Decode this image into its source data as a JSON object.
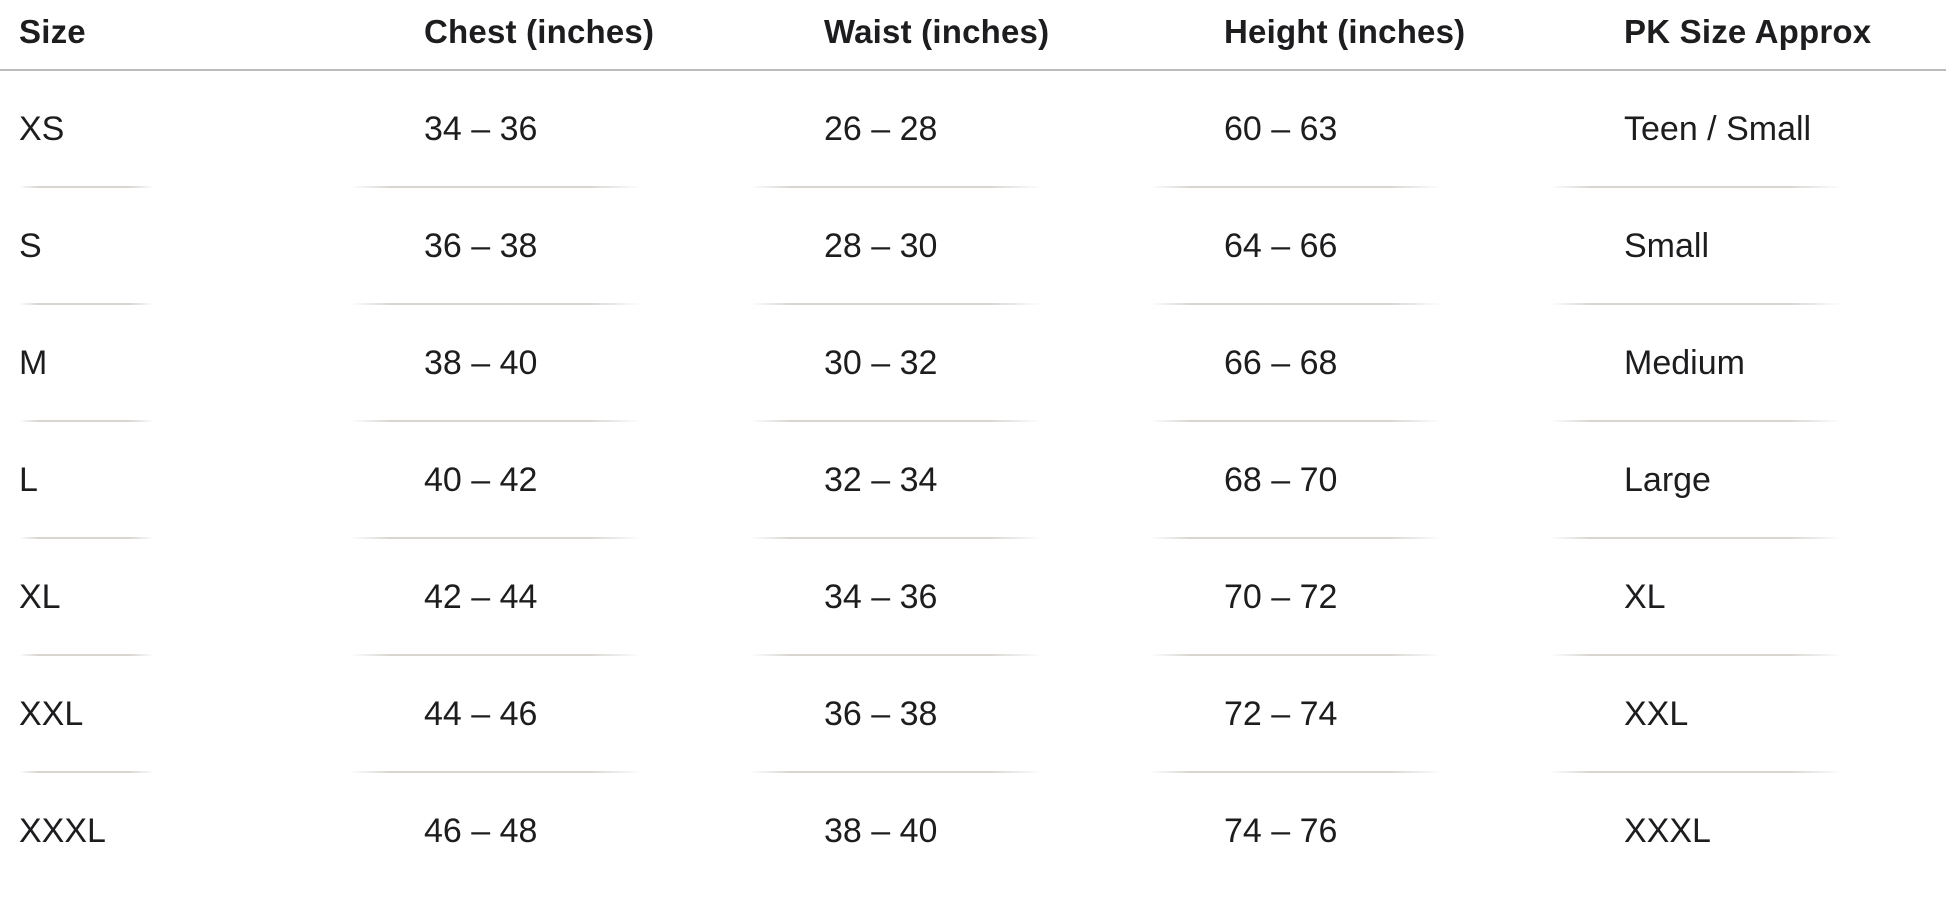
{
  "chart_data": {
    "type": "table",
    "columns": [
      {
        "id": "size",
        "label": "Size"
      },
      {
        "id": "chest",
        "label": "Chest (inches)"
      },
      {
        "id": "waist",
        "label": "Waist (inches)"
      },
      {
        "id": "height",
        "label": "Height (inches)"
      },
      {
        "id": "pk",
        "label": "PK Size Approx"
      }
    ],
    "rows": [
      {
        "size": "XS",
        "chest": "34 – 36",
        "waist": "26 – 28",
        "height": "60 – 63",
        "pk": "Teen / Small"
      },
      {
        "size": "S",
        "chest": "36 – 38",
        "waist": "28 – 30",
        "height": "64 – 66",
        "pk": "Small"
      },
      {
        "size": "M",
        "chest": "38 – 40",
        "waist": "30 – 32",
        "height": "66 – 68",
        "pk": "Medium"
      },
      {
        "size": "L",
        "chest": "40 – 42",
        "waist": "32 – 34",
        "height": "68 – 70",
        "pk": "Large"
      },
      {
        "size": "XL",
        "chest": "42 – 44",
        "waist": "34 – 36",
        "height": "70 – 72",
        "pk": "XL"
      },
      {
        "size": "XXL",
        "chest": "44 – 46",
        "waist": "36 – 38",
        "height": "72 – 74",
        "pk": "XXL"
      },
      {
        "size": "XXXL",
        "chest": "46 – 48",
        "waist": "38 – 40",
        "height": "74 – 76",
        "pk": "XXXL"
      }
    ]
  },
  "colors": {
    "background": "#ffffff",
    "text": "#1d1d1f",
    "header_divider": "#bcbcbc",
    "row_divider": "#d2cec9"
  }
}
